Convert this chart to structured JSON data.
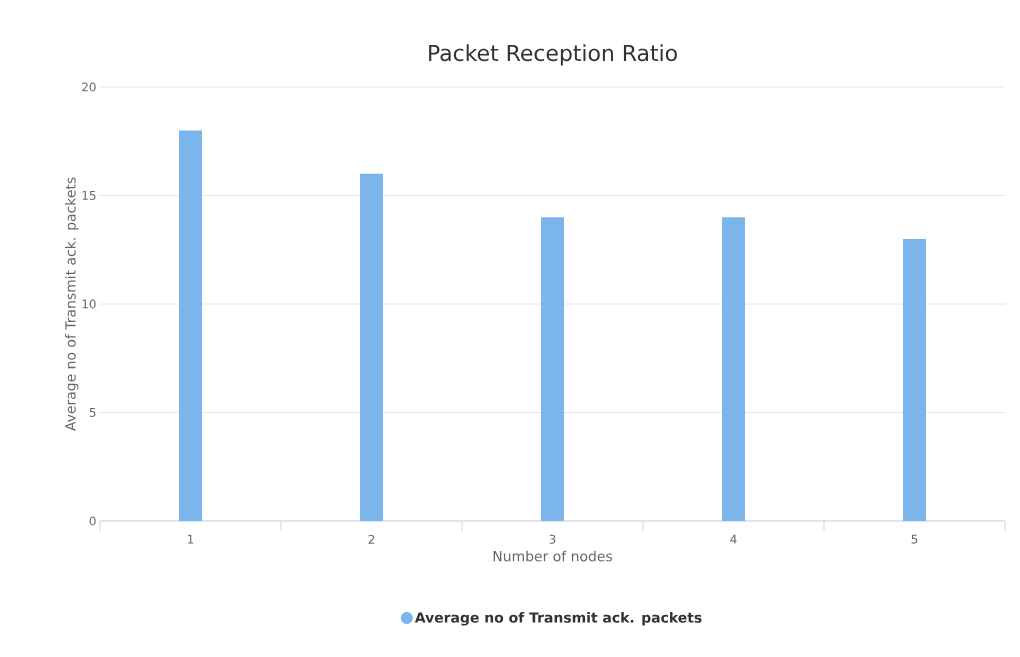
{
  "chart_data": {
    "type": "bar",
    "title": "Packet Reception Ratio",
    "xlabel": "Number of nodes",
    "ylabel": "Average no of Transmit ack. packets",
    "categories": [
      "1",
      "2",
      "3",
      "4",
      "5"
    ],
    "series": [
      {
        "name": "Average no of Transmit ack. packets",
        "color": "#7cb5ec",
        "values": [
          18,
          16,
          14,
          14,
          13
        ]
      }
    ],
    "ylim": [
      0,
      20
    ],
    "yticks": [
      0,
      5,
      10,
      15,
      20
    ],
    "grid": "y",
    "legend": "bottom"
  }
}
